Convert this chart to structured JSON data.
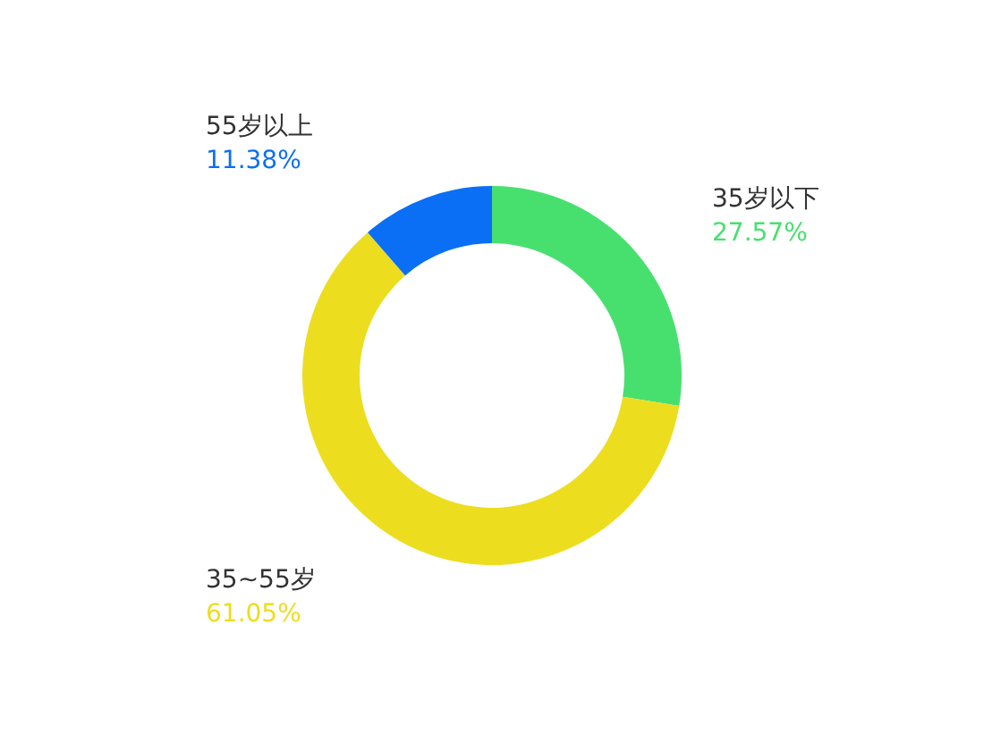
{
  "chart_data": {
    "type": "donut",
    "categories": [
      "35岁以下",
      "35~55岁",
      "55岁以上"
    ],
    "values": [
      27.57,
      61.05,
      11.38
    ],
    "colors": [
      "#47e06f",
      "#eddd1f",
      "#0a6ff5"
    ],
    "value_labels": [
      "27.57%",
      "61.05%",
      "11.38%"
    ]
  }
}
